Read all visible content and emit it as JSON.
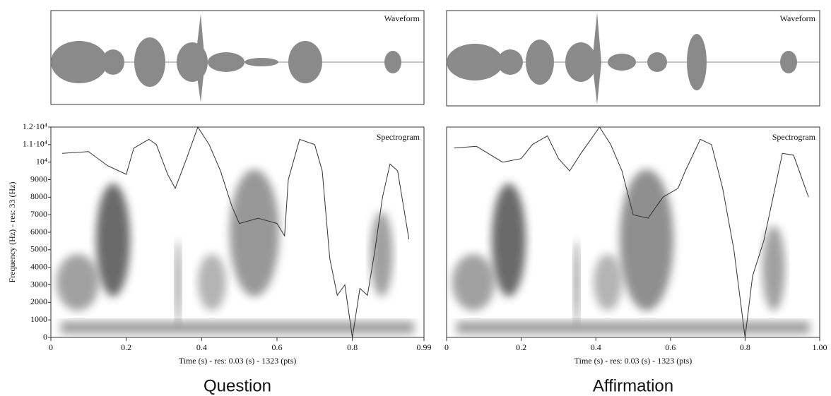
{
  "chart_data": [
    {
      "type": "line",
      "title": "Question",
      "waveform_label": "Waveform",
      "spectrogram_label": "Spectrogram",
      "xlabel": "Time (s) - res: 0.03 (s) - 1323 (pts)",
      "ylabel": "Frequency (Hz) - res: 33 (Hz)",
      "xlim": [
        0,
        0.99
      ],
      "xticks": [
        0,
        0.2,
        0.4,
        0.6,
        0.8,
        0.99
      ],
      "ylim": [
        0,
        12000
      ],
      "yticks": [
        0,
        1000,
        2000,
        3000,
        4000,
        5000,
        6000,
        7000,
        8000,
        9000,
        {
          "value": 10000,
          "label": "10⁴"
        },
        {
          "value": 11000,
          "label": "1.1·10⁴"
        },
        {
          "value": 12000,
          "label": "1.2·10⁴"
        }
      ],
      "series": [
        {
          "color": "#333333",
          "x": [
            0.03,
            0.1,
            0.15,
            0.2,
            0.22,
            0.26,
            0.28,
            0.31,
            0.33,
            0.36,
            0.39,
            0.42,
            0.45,
            0.48,
            0.5,
            0.55,
            0.6,
            0.62,
            0.63,
            0.66,
            0.7,
            0.72,
            0.74,
            0.76,
            0.78,
            0.8,
            0.82,
            0.84,
            0.86,
            0.88,
            0.9,
            0.92,
            0.95
          ],
          "values": [
            10500,
            10600,
            9800,
            9300,
            10800,
            11300,
            11000,
            9300,
            8500,
            10200,
            12000,
            11000,
            9500,
            7500,
            6500,
            6800,
            6500,
            5800,
            9000,
            11300,
            11000,
            9500,
            4500,
            2400,
            3000,
            0,
            2800,
            2400,
            5000,
            8000,
            9900,
            9500,
            5600
          ]
        }
      ]
    },
    {
      "type": "line",
      "title": "Affirmation",
      "waveform_label": "Waveform",
      "spectrogram_label": "Spectrogram",
      "xlabel": "Time (s) - res: 0.03 (s) - 1323 (pts)",
      "xlim": [
        0,
        1
      ],
      "xticks": [
        0,
        0.2,
        0.4,
        0.6,
        0.8,
        {
          "value": 1,
          "label": "1.00"
        }
      ],
      "ylim": [
        0,
        12000
      ],
      "series": [
        {
          "color": "#333333",
          "x": [
            0.02,
            0.08,
            0.15,
            0.2,
            0.23,
            0.27,
            0.3,
            0.33,
            0.36,
            0.41,
            0.44,
            0.47,
            0.5,
            0.54,
            0.58,
            0.62,
            0.64,
            0.68,
            0.71,
            0.74,
            0.77,
            0.8,
            0.82,
            0.85,
            0.87,
            0.9,
            0.93,
            0.97
          ],
          "values": [
            10800,
            10900,
            10000,
            10200,
            11000,
            11500,
            10200,
            9500,
            10500,
            12000,
            11000,
            9500,
            7000,
            6800,
            8000,
            8500,
            9500,
            11300,
            11000,
            8500,
            5000,
            0,
            3500,
            5500,
            7500,
            10500,
            10400,
            8000
          ]
        }
      ]
    }
  ]
}
